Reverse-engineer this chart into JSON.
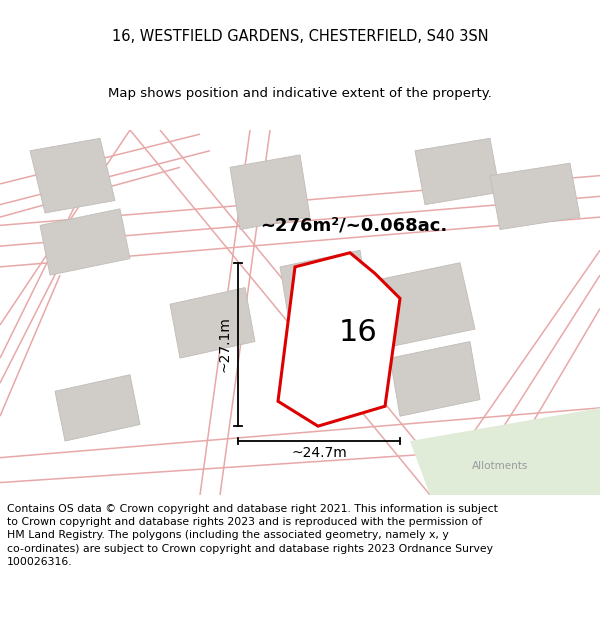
{
  "title": "16, WESTFIELD GARDENS, CHESTERFIELD, S40 3SN",
  "subtitle": "Map shows position and indicative extent of the property.",
  "footer_line1": "Contains OS data © Crown copyright and database right 2021. This information is subject",
  "footer_line2": "to Crown copyright and database rights 2023 and is reproduced with the permission of",
  "footer_line3": "HM Land Registry. The polygons (including the associated geometry, namely x, y",
  "footer_line4": "co-ordinates) are subject to Crown copyright and database rights 2023 Ordnance Survey",
  "footer_line5": "100026316.",
  "area_label": "~276m²/~0.068ac.",
  "house_number": "16",
  "dim_width": "~24.7m",
  "dim_height": "~27.1m",
  "allotments_label": "Allotments",
  "map_bg": "#f0ece6",
  "plot_fill": "#ffffff",
  "allotments_fill": "#e0ecd8",
  "road_color": "#e8a8a8",
  "building_color": "#d0ccc8",
  "building_edge": "#c0bcb8",
  "red_color": "#dd0000",
  "title_fontsize": 10.5,
  "subtitle_fontsize": 9.5,
  "footer_fontsize": 7.8,
  "area_fontsize": 13,
  "number_fontsize": 22,
  "dim_fontsize": 10
}
